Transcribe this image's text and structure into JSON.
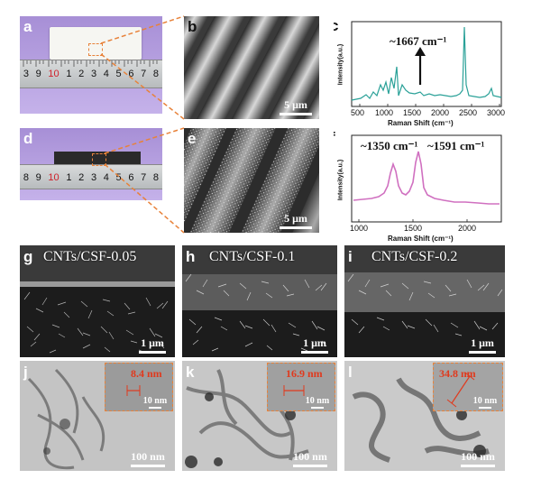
{
  "panels": {
    "a": {
      "label": "a",
      "ruler_numbers": [
        "3",
        "9",
        "10",
        "1",
        "2",
        "3",
        "4",
        "5",
        "6",
        "7",
        "8"
      ]
    },
    "b": {
      "label": "b",
      "scalebar": "5 μm"
    },
    "c": {
      "label": "c",
      "peak": "~1667 cm⁻¹",
      "ylabel": "Intensity(a.u.)",
      "xlabel": "Raman Shift (cm⁻¹)",
      "xticks": [
        "500",
        "1000",
        "1500",
        "2000",
        "2500",
        "3000"
      ]
    },
    "d": {
      "label": "d",
      "ruler_numbers": [
        "8",
        "9",
        "10",
        "1",
        "2",
        "3",
        "4",
        "5",
        "6",
        "7",
        "8"
      ]
    },
    "e": {
      "label": "e",
      "scalebar": "5 μm"
    },
    "f": {
      "label": "f",
      "peak1": "~1350 cm⁻¹",
      "peak2": "~1591 cm⁻¹",
      "ylabel": "Intensity(a.u.)",
      "xlabel": "Raman Shift (cm⁻¹)",
      "xticks": [
        "1000",
        "1500",
        "2000"
      ]
    },
    "g": {
      "label": "g",
      "sample": "CNTs/CSF-0.05",
      "scalebar": "1 μm"
    },
    "h": {
      "label": "h",
      "sample": "CNTs/CSF-0.1",
      "scalebar": "1 μm"
    },
    "i": {
      "label": "i",
      "sample": "CNTs/CSF-0.2",
      "scalebar": "1 μm"
    },
    "j": {
      "label": "j",
      "inset_width": "8.4 nm",
      "inset_scalebar": "10 nm",
      "scalebar": "100 nm"
    },
    "k": {
      "label": "k",
      "inset_width": "16.9 nm",
      "inset_scalebar": "10 nm",
      "scalebar": "100 nm"
    },
    "l": {
      "label": "l",
      "inset_width": "34.8 nm",
      "inset_scalebar": "10 nm",
      "scalebar": "100 nm"
    }
  },
  "colors": {
    "callout": "#e8823a",
    "raman_c": "#2aa198",
    "raman_f": "#d070c0",
    "measure": "#e03a1e"
  }
}
